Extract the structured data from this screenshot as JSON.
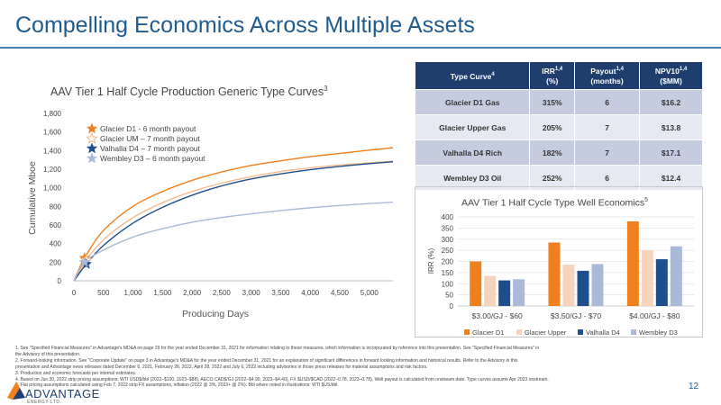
{
  "page": {
    "title": "Compelling Economics Across Multiple Assets",
    "page_number": "12",
    "logo_name": "ADVANTAGE",
    "logo_sub": "ENERGY LTD."
  },
  "left_chart_title": {
    "text": "AAV Tier 1 Half Cycle Production Generic Type Curves",
    "sup": "3"
  },
  "right_chart_title": {
    "text": "AAV Tier 1 Half Cycle Type Well Economics",
    "sup": "5"
  },
  "table": {
    "headers": [
      {
        "l1": "Type Curve",
        "sup": "4",
        "l2": ""
      },
      {
        "l1": "IRR",
        "sup": "1,4",
        "l2": "(%)"
      },
      {
        "l1": "Payout",
        "sup": "1,4",
        "l2": "(months)"
      },
      {
        "l1": "NPV10",
        "sup": "1,4",
        "l2": "($MM)"
      }
    ],
    "rows": [
      [
        "Glacier D1 Gas",
        "315%",
        "6",
        "$16.2"
      ],
      [
        "Glacier Upper Gas",
        "205%",
        "7",
        "$13.8"
      ],
      [
        "Valhalla D4 Rich",
        "182%",
        "7",
        "$17.1"
      ],
      [
        "Wembley D3 Oil",
        "252%",
        "6",
        "$12.4"
      ]
    ]
  },
  "chart_data": [
    {
      "type": "line",
      "title": "AAV Tier 1 Half Cycle Production Generic Type Curves",
      "xlabel": "Producing Days",
      "ylabel": "Cumulative Mboe",
      "xlim": [
        0,
        5400
      ],
      "ylim": [
        0,
        1800
      ],
      "xticks": [
        0,
        500,
        1000,
        1500,
        2000,
        2500,
        3000,
        3500,
        4000,
        4500,
        5000
      ],
      "xtick_labels": [
        "0",
        "500",
        "1,000",
        "1,500",
        "2,000",
        "2,500",
        "3,000",
        "3,500",
        "4,000",
        "4,500",
        "5,000"
      ],
      "yticks": [
        0,
        200,
        400,
        600,
        800,
        1000,
        1200,
        1400,
        1600,
        1800
      ],
      "ytick_labels": [
        "0",
        "200",
        "400",
        "600",
        "800",
        "1,000",
        "1,200",
        "1,400",
        "1,600",
        "1,800"
      ],
      "grid": false,
      "legend_position": "top-left",
      "series": [
        {
          "name": "Glacier D1 - 6 month payout",
          "color": "#f07f1e",
          "marker": "star-filled",
          "x": [
            0,
            180,
            500,
            1000,
            1500,
            2000,
            2500,
            3000,
            3500,
            4000,
            4500,
            5000,
            5400
          ],
          "y": [
            0,
            245,
            540,
            800,
            960,
            1080,
            1170,
            1240,
            1290,
            1335,
            1370,
            1405,
            1430
          ],
          "payout": [
            180,
            245
          ]
        },
        {
          "name": "Glacier UM – 7 month payout",
          "color": "#f5b98d",
          "marker": "star-open",
          "x": [
            0,
            210,
            500,
            1000,
            1500,
            2000,
            2500,
            3000,
            3500,
            4000,
            4500,
            5000,
            5400
          ],
          "y": [
            0,
            220,
            440,
            680,
            840,
            960,
            1050,
            1120,
            1175,
            1215,
            1245,
            1268,
            1285
          ],
          "payout": [
            210,
            220
          ]
        },
        {
          "name": "Valhalla D4 – 7 month payout",
          "color": "#1f4e8c",
          "marker": "star-filled",
          "x": [
            0,
            210,
            500,
            1000,
            1500,
            2000,
            2500,
            3000,
            3500,
            4000,
            4500,
            5000,
            5400
          ],
          "y": [
            0,
            180,
            380,
            620,
            790,
            920,
            1020,
            1095,
            1150,
            1195,
            1230,
            1260,
            1280
          ],
          "payout": [
            210,
            180
          ]
        },
        {
          "name": "Wembley D3 – 6 month payout",
          "color": "#a9b9d8",
          "marker": "star-filled",
          "x": [
            0,
            180,
            500,
            1000,
            1500,
            2000,
            2500,
            3000,
            3500,
            4000,
            4500,
            5000,
            5400
          ],
          "y": [
            0,
            200,
            330,
            470,
            560,
            630,
            680,
            720,
            755,
            785,
            810,
            830,
            845
          ],
          "payout": [
            180,
            200
          ]
        }
      ]
    },
    {
      "type": "bar",
      "title": "AAV Tier 1 Half Cycle Type Well Economics",
      "xlabel": "",
      "ylabel": "IRR (%)",
      "ylim": [
        0,
        400
      ],
      "yticks": [
        0,
        50,
        100,
        150,
        200,
        250,
        300,
        350,
        400
      ],
      "ytick_labels": [
        "0",
        "50",
        "100",
        "150",
        "200",
        "250",
        "300",
        "350",
        "400"
      ],
      "grid": true,
      "legend_position": "bottom",
      "categories": [
        "$3.00/GJ - $60",
        "$3.50/GJ - $70",
        "$4.00/GJ - $80"
      ],
      "series": [
        {
          "name": "Glacier D1",
          "color": "#f07f1e",
          "values": [
            200,
            285,
            380
          ]
        },
        {
          "name": "Glacier Upper",
          "color": "#f8d3bc",
          "values": [
            135,
            185,
            250
          ]
        },
        {
          "name": "Valhalla D4",
          "color": "#1f4e8c",
          "values": [
            115,
            158,
            210
          ]
        },
        {
          "name": "Wembley D3",
          "color": "#a9b9d8",
          "values": [
            120,
            188,
            268
          ]
        }
      ]
    }
  ],
  "footnotes": [
    "1. See \"Specified Financial Measures\" in Advantage's MD&A on page 29 for the year ended December 31, 2021 for information relating to these measures, which information is incorporated by reference into this presentation. See \"Specified Financial Measures\" in",
    "the Advisory of this presentation.",
    "2. Forward-looking information. See \"Corporate Update\" on page 3 in Advantage's MD&A for the year ended December 31, 2021 for an explanation of significant differences in forward looking information and historical results. Refer to the Advisory in this",
    "presentation and Advantage news releases dated December 6, 2021, February 26, 2022, April 28, 2022 and July 6, 2022 including advisories in those press releases for material assumptions and risk factors.",
    "3. Production and economic forecasts per internal estimates.",
    "4. Based on Jun 30, 2022 strip pricing assumptions: WTI USD$/bbl (2022–$100, 2023–$88), AECO CAD$/GJ (2022–$4.90, 2023–$4.40), FX $USD/$CAD (2022–0.78, 2023–0.78). Well payout is calculated from onstream date. Type curves assume Apr 2023 onstream.",
    "5. Flat pricing assumptions calculated using Feb 7, 2022 strip FX assumptions, inflation (2022 @ 3%, 2023+ @ 2%). Bbl where noted in illustrations: WTI $US/bbl."
  ]
}
